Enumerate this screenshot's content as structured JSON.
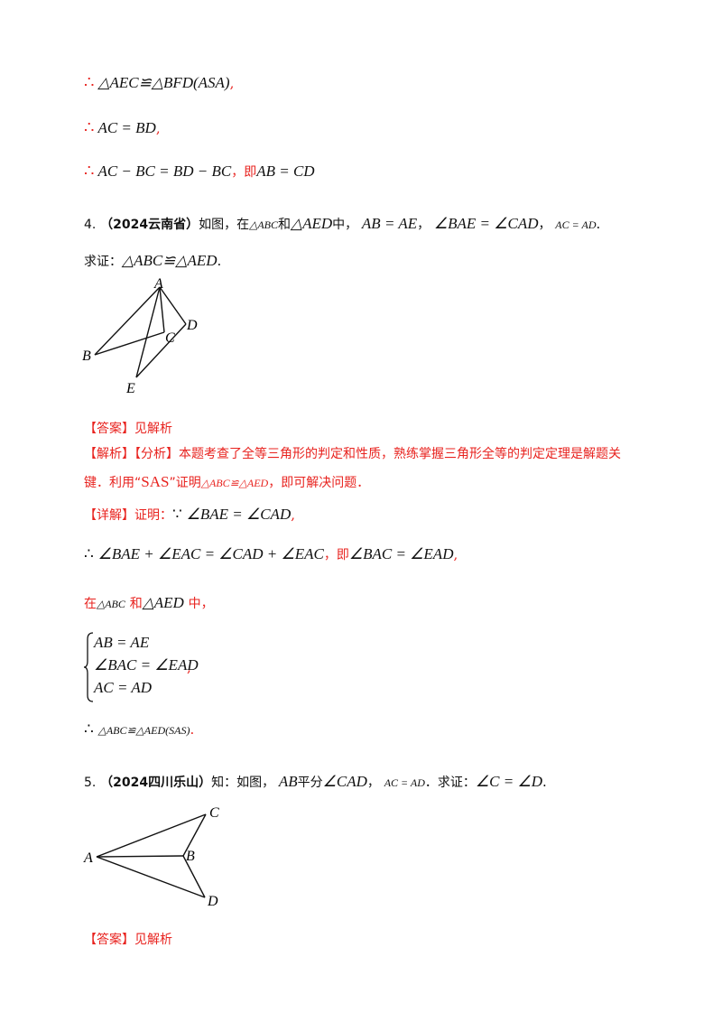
{
  "proof_prev": {
    "line1_symbol": "∴",
    "line1_expr": "△AEC≌△BFD(ASA)",
    "line1_end": ",",
    "line2_symbol": "∴",
    "line2_expr": "AC = BD",
    "line2_end": ",",
    "line3_symbol": "∴",
    "line3_expr": "AC − BC = BD − BC",
    "line3_mid": "，即",
    "line3_expr2": "AB = CD"
  },
  "q4": {
    "num": "4.",
    "source": "（2024云南省）",
    "text_a": "如图，在",
    "tri1": "△ABC",
    "text_b": "和",
    "tri2": "△AED",
    "text_c": "中，",
    "cond1": "AB = AE",
    "sep1": "，",
    "cond2": "∠BAE = ∠CAD",
    "sep2": "，",
    "cond3": "AC = AD",
    "end": ".",
    "prove_label": "求证：",
    "prove_expr": "△ABC≌△AED",
    "prove_end": ".",
    "fig_labels": {
      "A": "A",
      "B": "B",
      "C": "C",
      "D": "D",
      "E": "E"
    },
    "answer_tag": "【答案】",
    "answer_text": "见解析",
    "analysis_tag": "【解析】",
    "analysis_sub": "【分析】",
    "analysis_text1": "本题考查了全等三角形的判定和性质，熟练掌握三角形全等的判定定理是解题关",
    "analysis_text2a": "键．利用“",
    "analysis_sas": "SAS",
    "analysis_text2b": "”证明",
    "analysis_expr": "△ABC≌△AED",
    "analysis_text2c": "，即可解决问题．",
    "detail_tag": "【详解】",
    "detail_prove": "证明：",
    "because": "∵",
    "detail_expr1": "∠BAE = ∠CAD",
    "detail_end1": ",",
    "step2_symbol": "∴",
    "step2_expr": "∠BAE + ∠EAC = ∠CAD + ∠EAC",
    "step2_mid": "，即",
    "step2_expr2": "∠BAC = ∠EAD",
    "step2_end": ",",
    "in_label": "在",
    "in_tri1": "△ABC",
    "in_and": "和",
    "in_tri2": "△AED",
    "in_end": "中，",
    "system": [
      "AB = AE",
      "∠BAC = ∠EAD",
      "AC = AD"
    ],
    "system_end": ",",
    "concl_symbol": "∴",
    "concl_expr": "△ABC≌△AED(SAS)",
    "concl_end": "."
  },
  "q5": {
    "num": "5.",
    "source": "（2024四川乐山）",
    "text_a": "知：如图，",
    "seg": "AB",
    "text_b": "平分",
    "angle": "∠CAD",
    "sep": "，",
    "cond": "AC = AD",
    "text_c": "．求证：",
    "prove_expr": "∠C = ∠D",
    "end": ".",
    "fig_labels": {
      "A": "A",
      "B": "B",
      "C": "C",
      "D": "D"
    },
    "answer_tag": "【答案】",
    "answer_text": "见解析"
  }
}
